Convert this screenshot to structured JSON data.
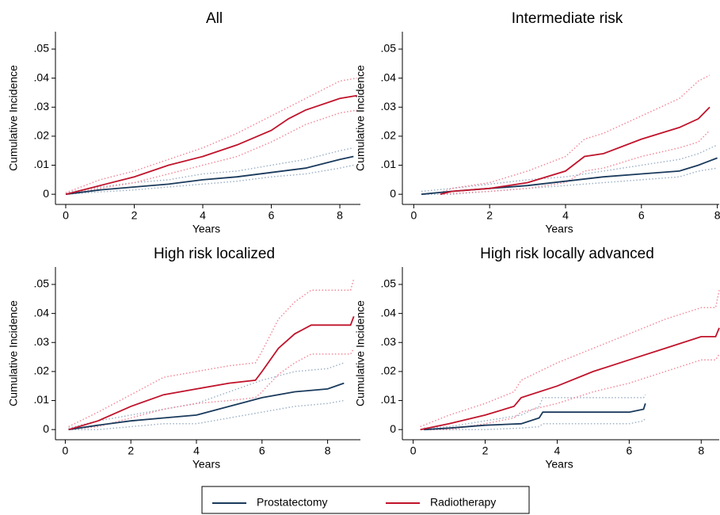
{
  "chart_data": [
    {
      "type": "line",
      "title": "All",
      "xlabel": "Years",
      "ylabel": "Cumulative Incidence",
      "xlim": [
        -0.3,
        8.6
      ],
      "ylim": [
        -0.0035,
        0.056
      ],
      "xticks": [
        0,
        2,
        4,
        6,
        8
      ],
      "yticks": [
        0,
        {
          "value": 0.01,
          "label": ".01"
        },
        {
          "value": 0.02,
          "label": ".02"
        },
        {
          "value": 0.03,
          "label": ".03"
        },
        {
          "value": 0.04,
          "label": ".04"
        },
        {
          "value": 0.05,
          "label": ".05"
        }
      ],
      "series": [
        {
          "name": "Prostatectomy",
          "color": "#1a3a5c",
          "ci_color": "#9fb3c8",
          "x": [
            0,
            1,
            2,
            3,
            4,
            5,
            6,
            7,
            8,
            8.4
          ],
          "values": [
            0,
            0.0015,
            0.0025,
            0.0035,
            0.005,
            0.006,
            0.0075,
            0.009,
            0.012,
            0.013
          ],
          "ci_upper": [
            0.0005,
            0.0025,
            0.004,
            0.005,
            0.007,
            0.008,
            0.01,
            0.012,
            0.015,
            0.016
          ],
          "ci_lower": [
            0,
            0.0008,
            0.0015,
            0.0025,
            0.0035,
            0.0045,
            0.006,
            0.007,
            0.009,
            0.01
          ]
        },
        {
          "name": "Radiotherapy",
          "color": "#c0132b",
          "ci_color": "#f28a9a",
          "x": [
            0,
            1,
            2,
            3,
            4,
            5,
            6,
            6.5,
            7,
            8,
            8.5
          ],
          "values": [
            0,
            0.003,
            0.006,
            0.01,
            0.013,
            0.017,
            0.022,
            0.026,
            0.029,
            0.033,
            0.034
          ],
          "ci_upper": [
            0.0005,
            0.005,
            0.008,
            0.012,
            0.016,
            0.021,
            0.027,
            0.03,
            0.033,
            0.039,
            0.04
          ],
          "ci_lower": [
            0,
            0.002,
            0.004,
            0.007,
            0.01,
            0.013,
            0.018,
            0.021,
            0.024,
            0.028,
            0.029
          ]
        }
      ]
    },
    {
      "type": "line",
      "title": "Intermediate risk",
      "xlabel": "Years",
      "ylabel": "Cumulative Incidence",
      "xlim": [
        -0.3,
        8.05
      ],
      "ylim": [
        -0.0035,
        0.056
      ],
      "xticks": [
        0,
        2,
        4,
        6,
        8
      ],
      "yticks": [
        0,
        {
          "value": 0.01,
          "label": ".01"
        },
        {
          "value": 0.02,
          "label": ".02"
        },
        {
          "value": 0.03,
          "label": ".03"
        },
        {
          "value": 0.04,
          "label": ".04"
        },
        {
          "value": 0.05,
          "label": ".05"
        }
      ],
      "series": [
        {
          "name": "Prostatectomy",
          "color": "#1a3a5c",
          "ci_color": "#9fb3c8",
          "x": [
            0.2,
            1,
            2,
            3,
            4,
            5,
            6,
            7,
            7.5,
            8
          ],
          "values": [
            0,
            0.001,
            0.002,
            0.003,
            0.0045,
            0.006,
            0.007,
            0.008,
            0.01,
            0.0125
          ],
          "ci_upper": [
            0.001,
            0.002,
            0.0035,
            0.005,
            0.006,
            0.008,
            0.01,
            0.012,
            0.014,
            0.017
          ],
          "ci_lower": [
            0,
            0,
            0.001,
            0.002,
            0.003,
            0.004,
            0.005,
            0.006,
            0.008,
            0.009
          ]
        },
        {
          "name": "Radiotherapy",
          "color": "#c0132b",
          "ci_color": "#f28a9a",
          "x": [
            0.7,
            1,
            2,
            3,
            4,
            4.5,
            5,
            6,
            7,
            7.5,
            7.8
          ],
          "values": [
            0,
            0.001,
            0.002,
            0.004,
            0.008,
            0.013,
            0.014,
            0.019,
            0.023,
            0.026,
            0.03
          ],
          "ci_upper": [
            0.0005,
            0.002,
            0.004,
            0.008,
            0.013,
            0.019,
            0.021,
            0.027,
            0.033,
            0.039,
            0.041
          ],
          "ci_lower": [
            0,
            0.0003,
            0.001,
            0.002,
            0.004,
            0.008,
            0.009,
            0.013,
            0.016,
            0.018,
            0.022
          ]
        }
      ]
    },
    {
      "type": "line",
      "title": "High risk localized",
      "xlabel": "Years",
      "ylabel": "Cumulative Incidence",
      "xlim": [
        -0.3,
        9.0
      ],
      "ylim": [
        -0.0035,
        0.056
      ],
      "xticks": [
        0,
        2,
        4,
        6,
        8
      ],
      "yticks": [
        0,
        {
          "value": 0.01,
          "label": ".01"
        },
        {
          "value": 0.02,
          "label": ".02"
        },
        {
          "value": 0.03,
          "label": ".03"
        },
        {
          "value": 0.04,
          "label": ".04"
        },
        {
          "value": 0.05,
          "label": ".05"
        }
      ],
      "series": [
        {
          "name": "Prostatectomy",
          "color": "#1a3a5c",
          "ci_color": "#9fb3c8",
          "x": [
            0.1,
            1,
            2,
            3,
            4,
            5,
            6,
            7,
            8,
            8.5
          ],
          "values": [
            0,
            0.0015,
            0.003,
            0.004,
            0.005,
            0.008,
            0.011,
            0.013,
            0.014,
            0.016
          ],
          "ci_upper": [
            0.0005,
            0.003,
            0.005,
            0.007,
            0.009,
            0.013,
            0.017,
            0.02,
            0.021,
            0.023
          ],
          "ci_lower": [
            0,
            0,
            0.001,
            0.002,
            0.002,
            0.004,
            0.006,
            0.008,
            0.009,
            0.01
          ]
        },
        {
          "name": "Radiotherapy",
          "color": "#c0132b",
          "ci_color": "#f28a9a",
          "x": [
            0.1,
            1,
            2,
            3,
            4,
            5,
            5.8,
            6,
            6.5,
            7,
            7.5,
            8.7,
            8.8
          ],
          "values": [
            0,
            0.003,
            0.008,
            0.012,
            0.014,
            0.016,
            0.017,
            0.02,
            0.028,
            0.033,
            0.036,
            0.036,
            0.039
          ],
          "ci_upper": [
            0.001,
            0.006,
            0.012,
            0.018,
            0.02,
            0.022,
            0.023,
            0.027,
            0.038,
            0.044,
            0.048,
            0.048,
            0.052
          ],
          "ci_lower": [
            0,
            0.001,
            0.004,
            0.007,
            0.009,
            0.01,
            0.011,
            0.013,
            0.019,
            0.023,
            0.026,
            0.026,
            0.028
          ]
        }
      ]
    },
    {
      "type": "line",
      "title": "High risk locally advanced",
      "xlabel": "Years",
      "ylabel": "Cumulative Incidence",
      "xlim": [
        -0.3,
        8.5
      ],
      "ylim": [
        -0.0035,
        0.056
      ],
      "xticks": [
        0,
        2,
        4,
        6,
        8
      ],
      "yticks": [
        0,
        {
          "value": 0.01,
          "label": ".01"
        },
        {
          "value": 0.02,
          "label": ".02"
        },
        {
          "value": 0.03,
          "label": ".03"
        },
        {
          "value": 0.04,
          "label": ".04"
        },
        {
          "value": 0.05,
          "label": ".05"
        }
      ],
      "series": [
        {
          "name": "Prostatectomy",
          "color": "#1a3a5c",
          "ci_color": "#9fb3c8",
          "x": [
            0.3,
            1,
            2,
            3,
            3.5,
            3.6,
            6,
            6.4,
            6.45
          ],
          "values": [
            0,
            0.0005,
            0.0015,
            0.002,
            0.004,
            0.006,
            0.006,
            0.007,
            0.009
          ],
          "ci_upper": [
            0.0005,
            0.001,
            0.003,
            0.005,
            0.008,
            0.011,
            0.011,
            0.011,
            0.012
          ],
          "ci_lower": [
            0,
            0,
            0,
            0.0005,
            0.001,
            0.002,
            0.002,
            0.003,
            0.004
          ]
        },
        {
          "name": "Radiotherapy",
          "color": "#c0132b",
          "ci_color": "#f28a9a",
          "x": [
            0.2,
            1,
            2,
            2.8,
            3,
            4,
            5,
            6,
            7,
            8,
            8.4,
            8.5
          ],
          "values": [
            0,
            0.002,
            0.005,
            0.008,
            0.011,
            0.015,
            0.02,
            0.024,
            0.028,
            0.032,
            0.032,
            0.035
          ],
          "ci_upper": [
            0.001,
            0.005,
            0.009,
            0.013,
            0.017,
            0.023,
            0.028,
            0.033,
            0.038,
            0.042,
            0.042,
            0.048
          ],
          "ci_lower": [
            0,
            0,
            0.002,
            0.004,
            0.006,
            0.009,
            0.013,
            0.016,
            0.02,
            0.024,
            0.024,
            0.026
          ]
        }
      ]
    }
  ]
}
